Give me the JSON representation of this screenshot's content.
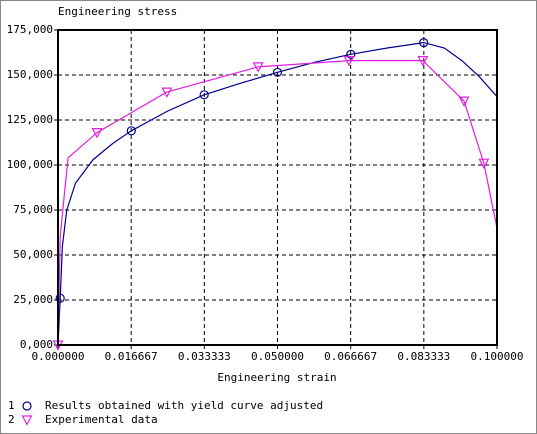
{
  "chart_data": {
    "type": "line",
    "title": "Engineering stress",
    "x_label": "Engineering strain",
    "xlim": [
      0,
      0.1
    ],
    "ylim": [
      0,
      175000
    ],
    "xticks": [
      {
        "value": 0,
        "label": "0.000000"
      },
      0.016667,
      0.033333,
      {
        "value": 0.05,
        "label": "0.050000"
      },
      0.066667,
      0.083333,
      {
        "value": 0.1,
        "label": "0.100000"
      }
    ],
    "yticks": [
      {
        "value": 0,
        "label": "0,000"
      },
      {
        "value": 25000,
        "label": "25,000"
      },
      {
        "value": 50000,
        "label": "50,000"
      },
      {
        "value": 75000,
        "label": "75,000"
      },
      {
        "value": 100000,
        "label": "100,000"
      },
      {
        "value": 125000,
        "label": "125,000"
      },
      {
        "value": 150000,
        "label": "150,000"
      },
      {
        "value": 175000,
        "label": "175,000"
      }
    ],
    "grid": true,
    "series": [
      {
        "name": "Results obtained with yield curve adjusted",
        "number": "1",
        "color": "#00008b",
        "marker": "circle",
        "x": [
          0,
          0.0005,
          0.001,
          0.002,
          0.004,
          0.008,
          0.0125,
          0.0167,
          0.025,
          0.0333,
          0.0417,
          0.05,
          0.0583,
          0.0667,
          0.075,
          0.0833,
          0.088,
          0.092,
          0.096,
          0.1
        ],
        "values": [
          0,
          26000,
          55000,
          75000,
          90000,
          103000,
          112000,
          119000,
          130000,
          139000,
          145500,
          151500,
          157000,
          161500,
          165000,
          168000,
          165000,
          158000,
          149000,
          138000
        ],
        "marker_indices": [
          1,
          7,
          9,
          11,
          13,
          15
        ]
      },
      {
        "name": "Experimental data",
        "number": "2",
        "color": "#e020e0",
        "marker": "triangle-down",
        "x": [
          0,
          0.0005,
          0.0015,
          0.0023,
          0.0089,
          0.0248,
          0.0456,
          0.0663,
          0.0831,
          0.0925,
          0.097,
          0.1
        ],
        "values": [
          0,
          60000,
          85000,
          104000,
          118000,
          140500,
          154500,
          158000,
          158000,
          135500,
          101000,
          65000
        ],
        "marker_indices": [
          0,
          4,
          5,
          6,
          7,
          8,
          9,
          10
        ]
      }
    ]
  }
}
